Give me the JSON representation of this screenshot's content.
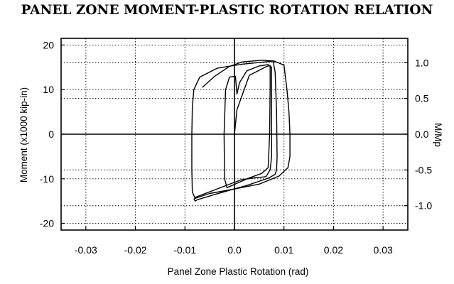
{
  "chart_data": {
    "type": "line",
    "title": "PANEL ZONE MOMENT-PLASTIC ROTATION RELATION",
    "xlabel": "Panel Zone Plastic Rotation (rad)",
    "ylabel": "Moment (x1000 kip-in)",
    "y2label": "M/Mp",
    "xlim": [
      -0.035,
      0.035
    ],
    "ylim": [
      -21.5,
      21.5
    ],
    "y2lim": [
      -1.34,
      1.34
    ],
    "grid": true,
    "xticks": [
      -0.03,
      -0.02,
      -0.01,
      0.0,
      0.01,
      0.02,
      0.03
    ],
    "xtick_labels": [
      "-0.03",
      "-0.02",
      "-0.01",
      "0.0",
      "0.01",
      "0.02",
      "0.03"
    ],
    "yticks": [
      -20,
      -10,
      0,
      10,
      20
    ],
    "ytick_labels": [
      "-20",
      "-10",
      "0",
      "10",
      "20"
    ],
    "y2ticks": [
      -1.0,
      -0.5,
      0.0,
      0.5,
      1.0
    ],
    "y2tick_labels": [
      "-1.0",
      "-0.5",
      "0.0",
      "0.5",
      "1.0"
    ],
    "series": [
      {
        "x": [
          0.0,
          0.0005,
          0.003,
          0.0065,
          0.0072,
          0.0072,
          0.0071,
          0.0068,
          0.0055,
          0.003,
          -0.0015,
          -0.002,
          -0.0021,
          -0.0018,
          -0.001,
          0.0002,
          0.0005,
          0.001,
          0.0025,
          0.005,
          0.0068,
          0.0075,
          0.0075,
          0.0075,
          0.0072,
          0.0064,
          0.0058
        ],
        "y": [
          0.0,
          5.5,
          13.2,
          15.2,
          15.4,
          10.0,
          0.0,
          -7.5,
          -8.8,
          -9.8,
          -12.0,
          -10.0,
          0.0,
          10.0,
          12.8,
          13.0,
          9.0,
          11.5,
          14.2,
          15.3,
          15.6,
          15.0,
          5.0,
          -5.0,
          -8.0,
          -9.5,
          -9.6
        ]
      },
      {
        "x": [
          0.0058,
          0.004,
          0.0015,
          -0.0005,
          -0.008,
          -0.0085,
          -0.0086,
          -0.0086,
          -0.0085,
          -0.0082,
          -0.007,
          -0.0035,
          0.0015,
          0.006,
          0.0078,
          0.0082,
          0.0085,
          0.0086,
          0.0085,
          0.0082,
          0.007,
          0.0025,
          -0.003,
          -0.0075,
          -0.0079,
          -0.0082
        ],
        "y": [
          -9.6,
          -9.8,
          -10.2,
          -11.0,
          -14.2,
          -13.0,
          -8.0,
          0.0,
          6.0,
          10.0,
          12.8,
          14.8,
          15.7,
          16.2,
          16.4,
          14.0,
          5.0,
          -5.0,
          -8.0,
          -9.0,
          -9.8,
          -11.5,
          -13.2,
          -14.7,
          -15.0,
          -14.5
        ]
      },
      {
        "x": [
          -0.0082,
          -0.005,
          -0.001,
          0.005,
          0.009,
          0.0108,
          0.0112,
          0.0112,
          0.011,
          0.0106,
          0.01,
          0.008,
          0.0055,
          0.0015,
          -0.001,
          -0.004,
          -0.0065
        ],
        "y": [
          -14.5,
          -13.3,
          -12.5,
          -11.2,
          -9.4,
          -7.5,
          -5.0,
          0.0,
          5.0,
          10.0,
          15.5,
          16.4,
          16.6,
          16.2,
          15.2,
          13.0,
          10.5
        ]
      }
    ]
  }
}
